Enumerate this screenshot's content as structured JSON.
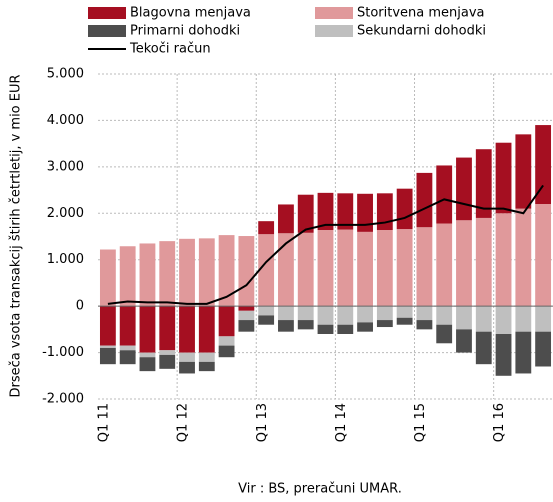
{
  "chart_data": {
    "type": "bar",
    "y_label": "Drseča vsota transakcij štirih četrtletij, v mio EUR",
    "source": "Vir : BS, preračuni  UMAR.",
    "categories": [
      "Q1 11",
      null,
      null,
      null,
      "Q1 12",
      null,
      null,
      null,
      "Q1 13",
      null,
      null,
      null,
      "Q1 14",
      null,
      null,
      null,
      "Q1 15",
      null,
      null,
      null,
      "Q1 16",
      null,
      null
    ],
    "ylim": [
      -2000,
      5000
    ],
    "yticks": [
      {
        "value": -2000,
        "label": "-2.000"
      },
      {
        "value": -1000,
        "label": "-1.000"
      },
      0,
      {
        "value": 1000,
        "label": "1.000"
      },
      {
        "value": 2000,
        "label": "2.000"
      },
      {
        "value": 3000,
        "label": "3.000"
      },
      {
        "value": 4000,
        "label": "4.000"
      },
      {
        "value": 5000,
        "label": "5.000"
      }
    ],
    "grid": true,
    "series": [
      {
        "name": "Blagovna menjava",
        "color": "#a50f21",
        "values": [
          -850,
          -850,
          -1000,
          -950,
          -1000,
          -1000,
          -650,
          -100,
          280,
          620,
          820,
          800,
          780,
          820,
          790,
          870,
          1170,
          1250,
          1350,
          1480,
          1520,
          1600,
          1700
        ]
      },
      {
        "name": "Storitvena menjava",
        "color": "#e0999b",
        "values": [
          1220,
          1290,
          1350,
          1400,
          1450,
          1460,
          1530,
          1510,
          1550,
          1570,
          1580,
          1640,
          1650,
          1600,
          1640,
          1660,
          1700,
          1780,
          1850,
          1900,
          2000,
          2100,
          2200
        ]
      },
      {
        "name": "Primarni dohodki",
        "color": "#4d4d4d",
        "values": [
          -350,
          -300,
          -300,
          -300,
          -250,
          -200,
          -250,
          -250,
          -200,
          -250,
          -200,
          -200,
          -200,
          -200,
          -150,
          -150,
          -200,
          -400,
          -500,
          -700,
          -900,
          -900,
          -750
        ]
      },
      {
        "name": "Sekundarni dohodki",
        "color": "#bfbfbf",
        "values": [
          -50,
          -100,
          -100,
          -100,
          -200,
          -200,
          -200,
          -200,
          -200,
          -300,
          -300,
          -400,
          -400,
          -350,
          -300,
          -250,
          -300,
          -400,
          -500,
          -550,
          -600,
          -550,
          -550
        ]
      },
      {
        "name": "Tekoči račun",
        "color": "#000000",
        "type": "line",
        "values": [
          50,
          100,
          80,
          80,
          50,
          50,
          200,
          450,
          950,
          1350,
          1650,
          1750,
          1750,
          1750,
          1800,
          1900,
          2100,
          2300,
          2200,
          2100,
          2100,
          2000,
          2600
        ]
      }
    ]
  }
}
